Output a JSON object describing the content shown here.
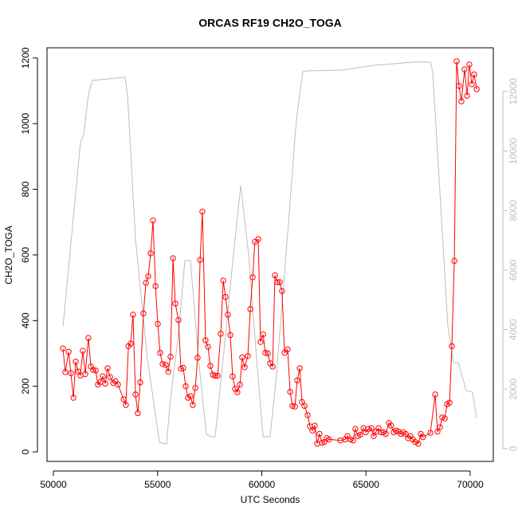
{
  "chart_data": {
    "type": "line",
    "title": "ORCAS RF19 CH2O_TOGA",
    "x_label": "UTC Seconds",
    "y_label": "CH2O_TOGA",
    "xlim": [
      49694,
      71109
    ],
    "xticks": [
      50000,
      55000,
      60000,
      65000,
      70000
    ],
    "ylim": [
      -29,
      1231
    ],
    "yticks": [
      0,
      200,
      400,
      600,
      800,
      1000,
      1200
    ],
    "y2lim": [
      -428,
      13467
    ],
    "y2ticks": [
      0,
      2000,
      4000,
      6000,
      8000,
      10000,
      12000
    ],
    "y2_color": "#bebebe",
    "series": [
      {
        "color": "#bebebe",
        "axis": "y2",
        "x": [
          50460,
          51300,
          51450,
          51680,
          51870,
          53440,
          53560,
          53940,
          54510,
          55090,
          55430,
          55620,
          56000,
          56310,
          56580,
          56960,
          57340,
          57570,
          57760,
          58150,
          58600,
          58990,
          59370,
          59750,
          60060,
          60400,
          60670,
          61280,
          61660,
          61970,
          62160,
          63880,
          65410,
          67320,
          68090,
          68200,
          68590,
          68930,
          69200,
          69430,
          69810,
          70110,
          70310
        ],
        "values": [
          4096,
          10300,
          10520,
          11900,
          12370,
          12480,
          11860,
          7040,
          3030,
          210,
          160,
          1690,
          3830,
          6320,
          6320,
          3030,
          480,
          400,
          400,
          3030,
          6240,
          8840,
          6510,
          3030,
          400,
          400,
          2220,
          7580,
          11060,
          12660,
          12690,
          12720,
          12880,
          12990,
          12990,
          12660,
          8110,
          4100,
          2890,
          2890,
          1950,
          1900,
          1020
        ]
      },
      {
        "color": "#ff0000",
        "markers": true,
        "x": [
          50460,
          50570,
          50730,
          50840,
          50960,
          51070,
          51190,
          51300,
          51410,
          51530,
          51680,
          51800,
          51910,
          52030,
          52140,
          52260,
          52370,
          52490,
          52600,
          52720,
          52870,
          52980,
          53100,
          53370,
          53480,
          53600,
          53710,
          53820,
          53940,
          54050,
          54170,
          54320,
          54440,
          54550,
          54670,
          54780,
          54900,
          55010,
          55120,
          55240,
          55390,
          55510,
          55620,
          55740,
          55850,
          56000,
          56120,
          56230,
          56350,
          56460,
          56580,
          56690,
          56810,
          56920,
          57040,
          57150,
          57300,
          57420,
          57530,
          57650,
          57760,
          57880,
          58030,
          58150,
          58260,
          58370,
          58490,
          58600,
          58720,
          58830,
          58950,
          59060,
          59180,
          59330,
          59450,
          59560,
          59670,
          59830,
          59940,
          60060,
          60170,
          60290,
          60400,
          60520,
          60630,
          60750,
          60860,
          60970,
          61090,
          61240,
          61360,
          61470,
          61590,
          61700,
          61820,
          61930,
          62050,
          62200,
          62310,
          62430,
          62540,
          62660,
          62770,
          62890,
          63000,
          63120,
          63230,
          63770,
          64000,
          64110,
          64260,
          64380,
          64490,
          64610,
          64720,
          64880,
          64990,
          65110,
          65260,
          65370,
          65490,
          65600,
          65720,
          65830,
          65950,
          66100,
          66210,
          66330,
          66440,
          66560,
          66670,
          66790,
          66900,
          67020,
          67130,
          67250,
          67360,
          67510,
          67630,
          67740,
          68090,
          68320,
          68430,
          68550,
          68660,
          68780,
          68890,
          69010,
          69120,
          69240,
          69350,
          69460,
          69580,
          69730,
          69850,
          69960,
          70080,
          70190,
          70310
        ],
        "values": [
          315,
          243,
          305,
          240,
          165,
          275,
          245,
          233,
          308,
          237,
          347,
          260,
          250,
          248,
          205,
          213,
          230,
          208,
          255,
          228,
          210,
          215,
          205,
          160,
          143,
          322,
          330,
          418,
          175,
          118,
          212,
          422,
          515,
          535,
          605,
          705,
          505,
          390,
          302,
          268,
          265,
          244,
          290,
          590,
          452,
          402,
          253,
          256,
          200,
          165,
          170,
          143,
          195,
          287,
          585,
          732,
          340,
          320,
          262,
          235,
          232,
          232,
          360,
          522,
          472,
          418,
          356,
          230,
          192,
          182,
          205,
          288,
          258,
          292,
          435,
          532,
          640,
          648,
          335,
          358,
          302,
          300,
          270,
          260,
          538,
          517,
          517,
          490,
          302,
          312,
          183,
          140,
          138,
          218,
          255,
          152,
          140,
          112,
          78,
          65,
          80,
          25,
          55,
          28,
          30,
          42,
          38,
          35,
          38,
          48,
          38,
          35,
          70,
          48,
          52,
          72,
          60,
          70,
          72,
          48,
          62,
          72,
          60,
          60,
          55,
          88,
          80,
          60,
          65,
          62,
          55,
          60,
          55,
          42,
          48,
          38,
          30,
          25,
          55,
          45,
          58,
          175,
          62,
          75,
          105,
          102,
          145,
          150,
          322,
          582,
          1190,
          1115,
          1068,
          1165,
          1085,
          1180,
          1120,
          1150,
          1105
        ]
      }
    ]
  }
}
